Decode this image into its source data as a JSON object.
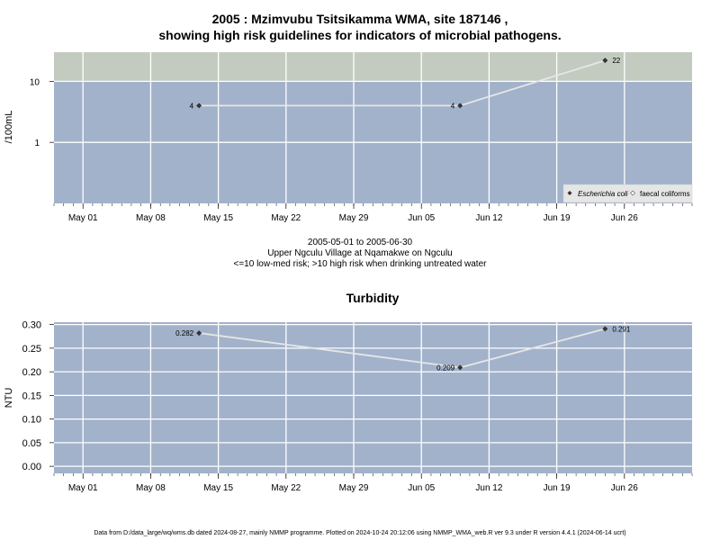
{
  "top_chart": {
    "title_line1": "2005 : Mzimvubu Tsitsikamma WMA, site 187146 ,",
    "title_line2": "showing high risk guidelines for indicators of microbial pathogens.",
    "ylabel": "/100mL",
    "ytick_labels": [
      "10",
      "1"
    ],
    "xtick_labels": [
      "May 01",
      "May 08",
      "May 15",
      "May 22",
      "May 29",
      "Jun 05",
      "Jun 12",
      "Jun 19",
      "Jun 26"
    ],
    "legend": {
      "ecoli": "Escherichia coli",
      "faecal": "faecal coliforms"
    },
    "colors": {
      "high_risk_band": "#c3cbc1",
      "low_risk_band": "#a2b2cb",
      "line": "#e6e6e6",
      "point": "#333333"
    }
  },
  "caption": {
    "line1": "2005-05-01 to 2005-06-30",
    "line2": "Upper Ngculu Village at Nqamakwe on Ngculu",
    "line3": "<=10 low-med risk; >10 high risk when drinking untreated water"
  },
  "bottom_chart": {
    "title": "Turbidity",
    "ylabel": "NTU",
    "ytick_labels": [
      "0.30",
      "0.25",
      "0.20",
      "0.15",
      "0.10",
      "0.05",
      "0.00"
    ],
    "xtick_labels": [
      "May 01",
      "May 08",
      "May 15",
      "May 22",
      "May 29",
      "Jun 05",
      "Jun 12",
      "Jun 19",
      "Jun 26"
    ],
    "colors": {
      "panel": "#a2b2cb",
      "line": "#e6e6e6",
      "point": "#333333"
    }
  },
  "footer": "Data from D:/data_large/wq/wms.db dated 2024-08-27, mainly NMMP programme. Plotted on 2024-10-24 20:12:06 using NMMP_WMA_web.R ver 9.3 under R version 4.4.1 (2024-06-14 ucrt)",
  "chart_data": [
    {
      "type": "line",
      "title": "2005 : Mzimvubu Tsitsikamma WMA, site 187146 , showing high risk guidelines for indicators of microbial pathogens.",
      "ylabel": "/100mL",
      "y_scale": "log",
      "xlim": [
        "2005-04-28",
        "2005-07-03"
      ],
      "ylim": [
        0.1,
        30
      ],
      "threshold": 10,
      "grid": true,
      "legend_position": "bottom-right",
      "series": [
        {
          "name": "Escherichia coli",
          "x": [
            "2005-05-13",
            "2005-06-09",
            "2005-06-24"
          ],
          "values": [
            4,
            4,
            22
          ],
          "labels": [
            "4",
            "4",
            "22"
          ]
        }
      ]
    },
    {
      "type": "line",
      "title": "Turbidity",
      "ylabel": "NTU",
      "xlim": [
        "2005-04-28",
        "2005-07-03"
      ],
      "ylim": [
        -0.015,
        0.305
      ],
      "grid": true,
      "series": [
        {
          "x": [
            "2005-05-13",
            "2005-06-09",
            "2005-06-24"
          ],
          "values": [
            0.282,
            0.209,
            0.291
          ],
          "labels": [
            "0.282",
            "0.209",
            "0.291"
          ]
        }
      ]
    }
  ]
}
